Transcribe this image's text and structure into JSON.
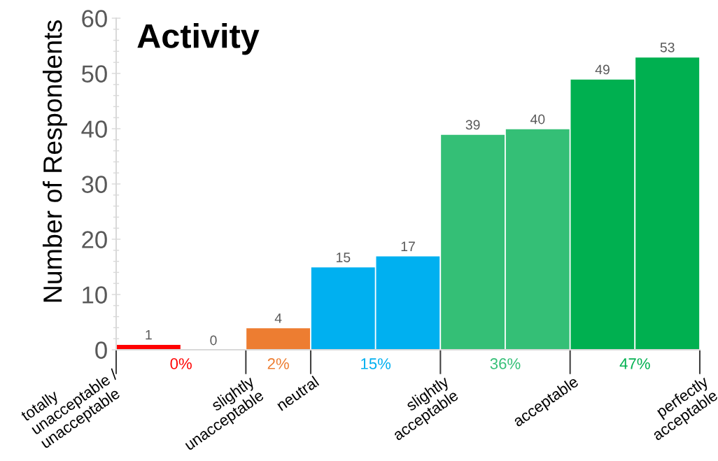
{
  "chart_data": {
    "type": "bar",
    "title": "Activity",
    "ylabel": "Number of Respondents",
    "categories": [
      null,
      null,
      null,
      null,
      null,
      null,
      null,
      null,
      null
    ],
    "values": [
      1,
      0,
      4,
      15,
      17,
      39,
      40,
      49,
      53
    ],
    "colors": [
      "#ff0000",
      null,
      "#ed7d31",
      "#00b0f0",
      "#00b0f0",
      "#34bf76",
      "#34bf76",
      "#00b050",
      "#00b050"
    ],
    "ylim": [
      0,
      60
    ],
    "yticks": [
      0,
      10,
      20,
      30,
      40,
      50,
      60
    ],
    "data_labels": true,
    "annotations": [
      "totally\nunacceptable /\nunacceptable",
      "slightly\nunacceptable",
      "neutral",
      "slightly\nacceptable",
      "acceptable",
      "perfectly\nacceptable",
      "0%",
      "2%",
      "15%",
      "36%",
      "47%"
    ]
  }
}
